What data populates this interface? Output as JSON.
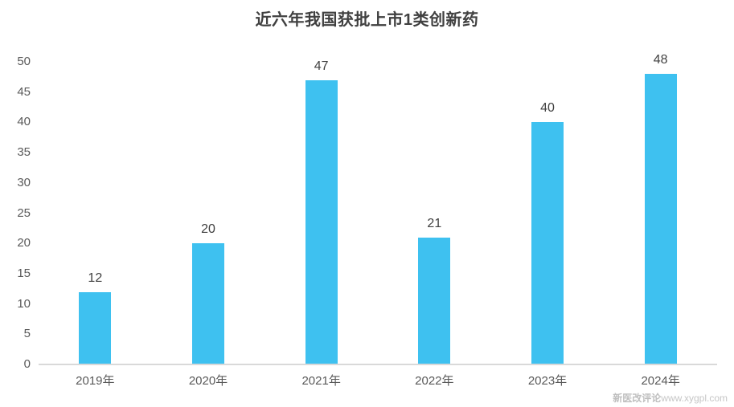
{
  "chart_data": {
    "type": "bar",
    "title": "近六年我国获批上市1类创新药",
    "categories": [
      "2019年",
      "2020年",
      "2021年",
      "2022年",
      "2023年",
      "2024年"
    ],
    "values": [
      12,
      20,
      47,
      21,
      40,
      48
    ],
    "data_labels": [
      "12",
      "20",
      "47",
      "21",
      "40",
      "48"
    ],
    "xlabel": "",
    "ylabel": "",
    "ylim": [
      0,
      50
    ],
    "y_ticks": [
      0,
      5,
      10,
      15,
      20,
      25,
      30,
      35,
      40,
      45,
      50
    ],
    "grid": false,
    "legend_position": "none",
    "bar_color": "#3EC1F0"
  },
  "colors": {
    "background": "#FFFFFF",
    "title_text": "#404040",
    "axis_tick_text": "#595959",
    "value_label_text": "#404040",
    "axis_line": "#D9D9D9",
    "bar": "#3EC1F0",
    "watermark_text": "#C6C6C6"
  },
  "watermark": {
    "site_name": "新医改评论",
    "url": "www.xygpl.com"
  }
}
